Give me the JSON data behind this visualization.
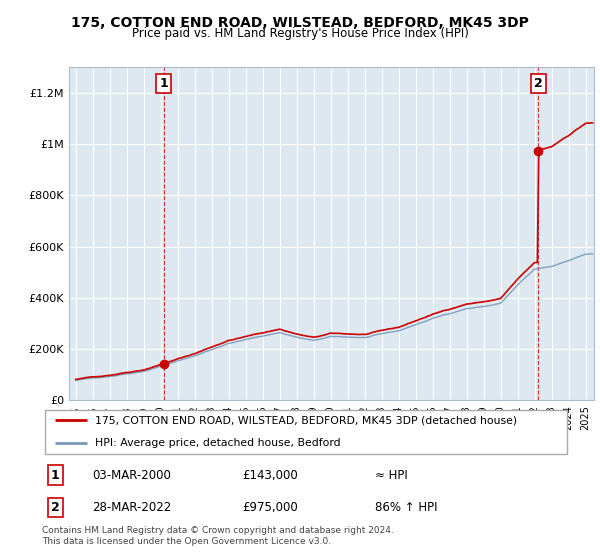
{
  "title": "175, COTTON END ROAD, WILSTEAD, BEDFORD, MK45 3DP",
  "subtitle": "Price paid vs. HM Land Registry's House Price Index (HPI)",
  "legend_line1": "175, COTTON END ROAD, WILSTEAD, BEDFORD, MK45 3DP (detached house)",
  "legend_line2": "HPI: Average price, detached house, Bedford",
  "footer": "Contains HM Land Registry data © Crown copyright and database right 2024.\nThis data is licensed under the Open Government Licence v3.0.",
  "annotation1": {
    "num": "1",
    "date": "03-MAR-2000",
    "price": "£143,000",
    "hpi": "≈ HPI"
  },
  "annotation2": {
    "num": "2",
    "date": "28-MAR-2022",
    "price": "£975,000",
    "hpi": "86% ↑ HPI"
  },
  "sale1_year": 2000.17,
  "sale1_price": 143000,
  "sale2_year": 2022.23,
  "sale2_price": 975000,
  "hpi_color": "#7799bb",
  "price_color": "#cc0000",
  "bg_color": "#dde8f0",
  "ylim_max": 1300000,
  "xlim_start": 1994.6,
  "xlim_end": 2025.5
}
